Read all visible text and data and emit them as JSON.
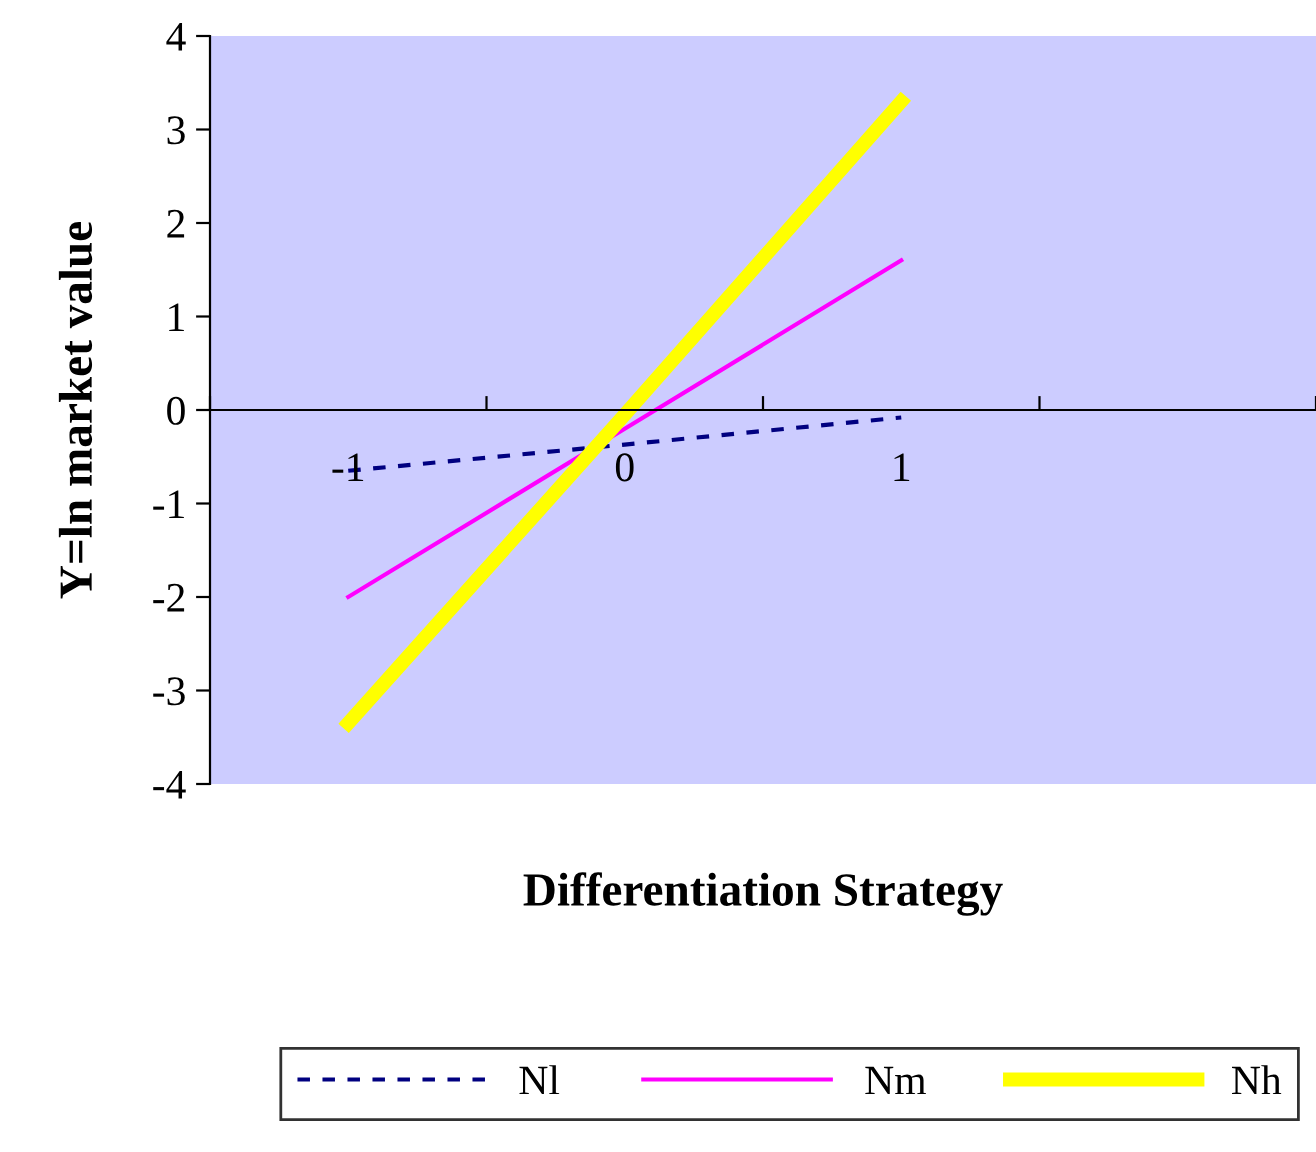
{
  "chart_data": {
    "type": "line",
    "xlabel": "Differentiation Strategy",
    "ylabel": "Y=ln market value",
    "categories": [
      "-1",
      "0",
      "1",
      null
    ],
    "series": [
      {
        "name": "Nl",
        "color": "#000080",
        "line_style": "dashed",
        "values": [
          -0.65,
          -0.37,
          -0.08,
          null
        ]
      },
      {
        "name": "Nm",
        "color": "#ff00ff",
        "line_style": "solid",
        "values": [
          -2.0,
          -0.2,
          1.6,
          null
        ]
      },
      {
        "name": "Nh",
        "color": "#ffff00",
        "line_style": "solid",
        "values": [
          -3.35,
          -0.05,
          3.3,
          null
        ]
      }
    ],
    "ylim": [
      -4,
      4
    ],
    "yticks": [
      -4,
      -3,
      -2,
      -1,
      0,
      1,
      2,
      3,
      4
    ],
    "grid": false,
    "legend": "bottom"
  }
}
